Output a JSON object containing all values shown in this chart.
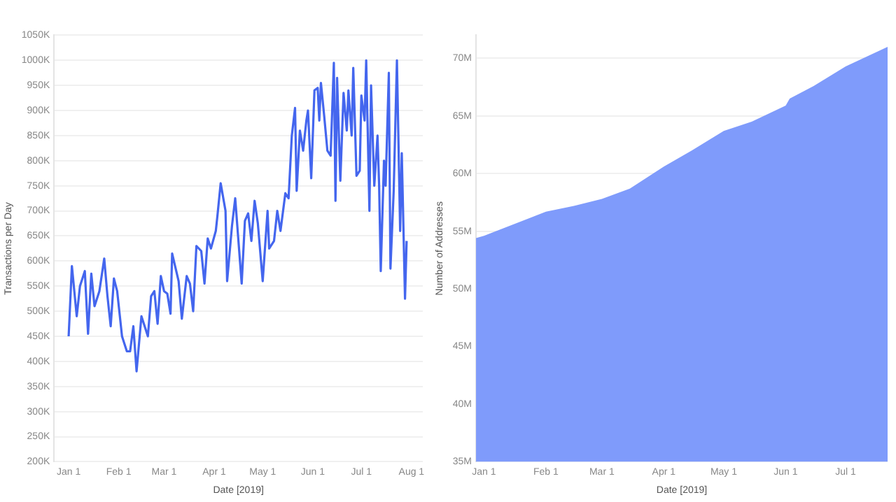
{
  "chart_data": [
    {
      "type": "line",
      "xlabel": "Date [2019]",
      "ylabel": "Transactions per Day",
      "grid": "y",
      "x": [
        "2019-01-01",
        "2019-01-03",
        "2019-01-06",
        "2019-01-08",
        "2019-01-11",
        "2019-01-13",
        "2019-01-15",
        "2019-01-17",
        "2019-01-20",
        "2019-01-23",
        "2019-01-25",
        "2019-01-27",
        "2019-01-29",
        "2019-01-31",
        "2019-02-03",
        "2019-02-06",
        "2019-02-08",
        "2019-02-10",
        "2019-02-12",
        "2019-02-15",
        "2019-02-19",
        "2019-02-21",
        "2019-02-23",
        "2019-02-25",
        "2019-02-27",
        "2019-03-01",
        "2019-03-03",
        "2019-03-05",
        "2019-03-06",
        "2019-03-10",
        "2019-03-12",
        "2019-03-15",
        "2019-03-17",
        "2019-03-19",
        "2019-03-21",
        "2019-03-24",
        "2019-03-26",
        "2019-03-28",
        "2019-03-30",
        "2019-04-02",
        "2019-04-03",
        "2019-04-05",
        "2019-04-08",
        "2019-04-09",
        "2019-04-12",
        "2019-04-14",
        "2019-04-16",
        "2019-04-18",
        "2019-04-20",
        "2019-04-22",
        "2019-04-24",
        "2019-04-26",
        "2019-04-28",
        "2019-05-01",
        "2019-05-04",
        "2019-05-05",
        "2019-05-08",
        "2019-05-10",
        "2019-05-12",
        "2019-05-15",
        "2019-05-17",
        "2019-05-19",
        "2019-05-21",
        "2019-05-22",
        "2019-05-24",
        "2019-05-26",
        "2019-05-28",
        "2019-05-29",
        "2019-05-31",
        "2019-06-02",
        "2019-06-04",
        "2019-06-05",
        "2019-06-06",
        "2019-06-08",
        "2019-06-10",
        "2019-06-12",
        "2019-06-14",
        "2019-06-15",
        "2019-06-16",
        "2019-06-18",
        "2019-06-20",
        "2019-06-22",
        "2019-06-23",
        "2019-06-25",
        "2019-06-26",
        "2019-06-28",
        "2019-06-30",
        "2019-07-01",
        "2019-07-03",
        "2019-07-04",
        "2019-07-06",
        "2019-07-07",
        "2019-07-09",
        "2019-07-11",
        "2019-07-12",
        "2019-07-13",
        "2019-07-15",
        "2019-07-16",
        "2019-07-18",
        "2019-07-19",
        "2019-07-21",
        "2019-07-23",
        "2019-07-25",
        "2019-07-26",
        "2019-07-28",
        "2019-07-29"
      ],
      "series": [
        {
          "color": "#4466ee",
          "values": [
            450000,
            590000,
            490000,
            550000,
            580000,
            455000,
            575000,
            510000,
            540000,
            605000,
            530000,
            470000,
            565000,
            540000,
            450000,
            420000,
            420000,
            470000,
            380000,
            490000,
            450000,
            530000,
            540000,
            475000,
            570000,
            540000,
            535000,
            495000,
            615000,
            560000,
            485000,
            570000,
            555000,
            500000,
            630000,
            620000,
            555000,
            645000,
            625000,
            660000,
            690000,
            755000,
            700000,
            560000,
            670000,
            725000,
            640000,
            555000,
            680000,
            695000,
            640000,
            720000,
            675000,
            560000,
            700000,
            625000,
            640000,
            700000,
            660000,
            735000,
            725000,
            850000,
            905000,
            740000,
            860000,
            820000,
            880000,
            900000,
            765000,
            940000,
            945000,
            880000,
            955000,
            890000,
            820000,
            810000,
            995000,
            720000,
            965000,
            760000,
            935000,
            860000,
            940000,
            850000,
            985000,
            770000,
            780000,
            930000,
            880000,
            1000000,
            700000,
            950000,
            750000,
            850000,
            750000,
            580000,
            800000,
            750000,
            975000,
            585000,
            740000,
            1000000,
            660000,
            815000,
            525000,
            640000
          ]
        }
      ],
      "xlim": [
        "2018-12-23",
        "2019-08-08"
      ],
      "xticks": [
        {
          "value": "2019-01-01",
          "label": "Jan 1"
        },
        {
          "value": "2019-02-01",
          "label": "Feb 1"
        },
        {
          "value": "2019-03-01",
          "label": "Mar 1"
        },
        {
          "value": "2019-04-01",
          "label": "Apr 1"
        },
        {
          "value": "2019-05-01",
          "label": "May 1"
        },
        {
          "value": "2019-06-01",
          "label": "Jun 1"
        },
        {
          "value": "2019-07-01",
          "label": "Jul 1"
        },
        {
          "value": "2019-08-01",
          "label": "Aug 1"
        }
      ],
      "ylim": [
        200000,
        1050000
      ],
      "yticks": [
        {
          "value": 200000,
          "label": "200K"
        },
        {
          "value": 250000,
          "label": "250K"
        },
        {
          "value": 300000,
          "label": "300K"
        },
        {
          "value": 350000,
          "label": "350K"
        },
        {
          "value": 400000,
          "label": "400K"
        },
        {
          "value": 450000,
          "label": "450K"
        },
        {
          "value": 500000,
          "label": "500K"
        },
        {
          "value": 550000,
          "label": "550K"
        },
        {
          "value": 600000,
          "label": "600K"
        },
        {
          "value": 650000,
          "label": "650K"
        },
        {
          "value": 700000,
          "label": "700K"
        },
        {
          "value": 750000,
          "label": "750K"
        },
        {
          "value": 800000,
          "label": "800K"
        },
        {
          "value": 850000,
          "label": "850K"
        },
        {
          "value": 900000,
          "label": "900K"
        },
        {
          "value": 950000,
          "label": "950K"
        },
        {
          "value": 1000000,
          "label": "1000K"
        },
        {
          "value": 1050000,
          "label": "1050K"
        }
      ]
    },
    {
      "type": "area",
      "xlabel": "Date [2019]",
      "ylabel": "Number of Addresses",
      "grid": "y",
      "x": [
        "2018-12-28",
        "2019-01-01",
        "2019-02-01",
        "2019-02-15",
        "2019-03-01",
        "2019-03-15",
        "2019-04-01",
        "2019-04-15",
        "2019-05-01",
        "2019-05-15",
        "2019-06-01",
        "2019-06-03",
        "2019-06-15",
        "2019-07-01",
        "2019-07-22"
      ],
      "series": [
        {
          "color": "#7f9bfb",
          "values": [
            54400000,
            54600000,
            56700000,
            57200000,
            57800000,
            58700000,
            60600000,
            62000000,
            63700000,
            64500000,
            65900000,
            66500000,
            67600000,
            69300000,
            71000000
          ]
        }
      ],
      "xlim": [
        "2018-12-28",
        "2019-07-22"
      ],
      "xticks": [
        {
          "value": "2019-01-01",
          "label": "Jan 1"
        },
        {
          "value": "2019-02-01",
          "label": "Feb 1"
        },
        {
          "value": "2019-03-01",
          "label": "Mar 1"
        },
        {
          "value": "2019-04-01",
          "label": "Apr 1"
        },
        {
          "value": "2019-05-01",
          "label": "May 1"
        },
        {
          "value": "2019-06-01",
          "label": "Jun 1"
        },
        {
          "value": "2019-07-01",
          "label": "Jul 1"
        }
      ],
      "ylim": [
        35000000,
        72000000
      ],
      "yticks": [
        {
          "value": 35000000,
          "label": "35M"
        },
        {
          "value": 40000000,
          "label": "40M"
        },
        {
          "value": 45000000,
          "label": "45M"
        },
        {
          "value": 50000000,
          "label": "50M"
        },
        {
          "value": 55000000,
          "label": "55M"
        },
        {
          "value": 60000000,
          "label": "60M"
        },
        {
          "value": 65000000,
          "label": "65M"
        },
        {
          "value": 70000000,
          "label": "70M"
        }
      ]
    }
  ]
}
